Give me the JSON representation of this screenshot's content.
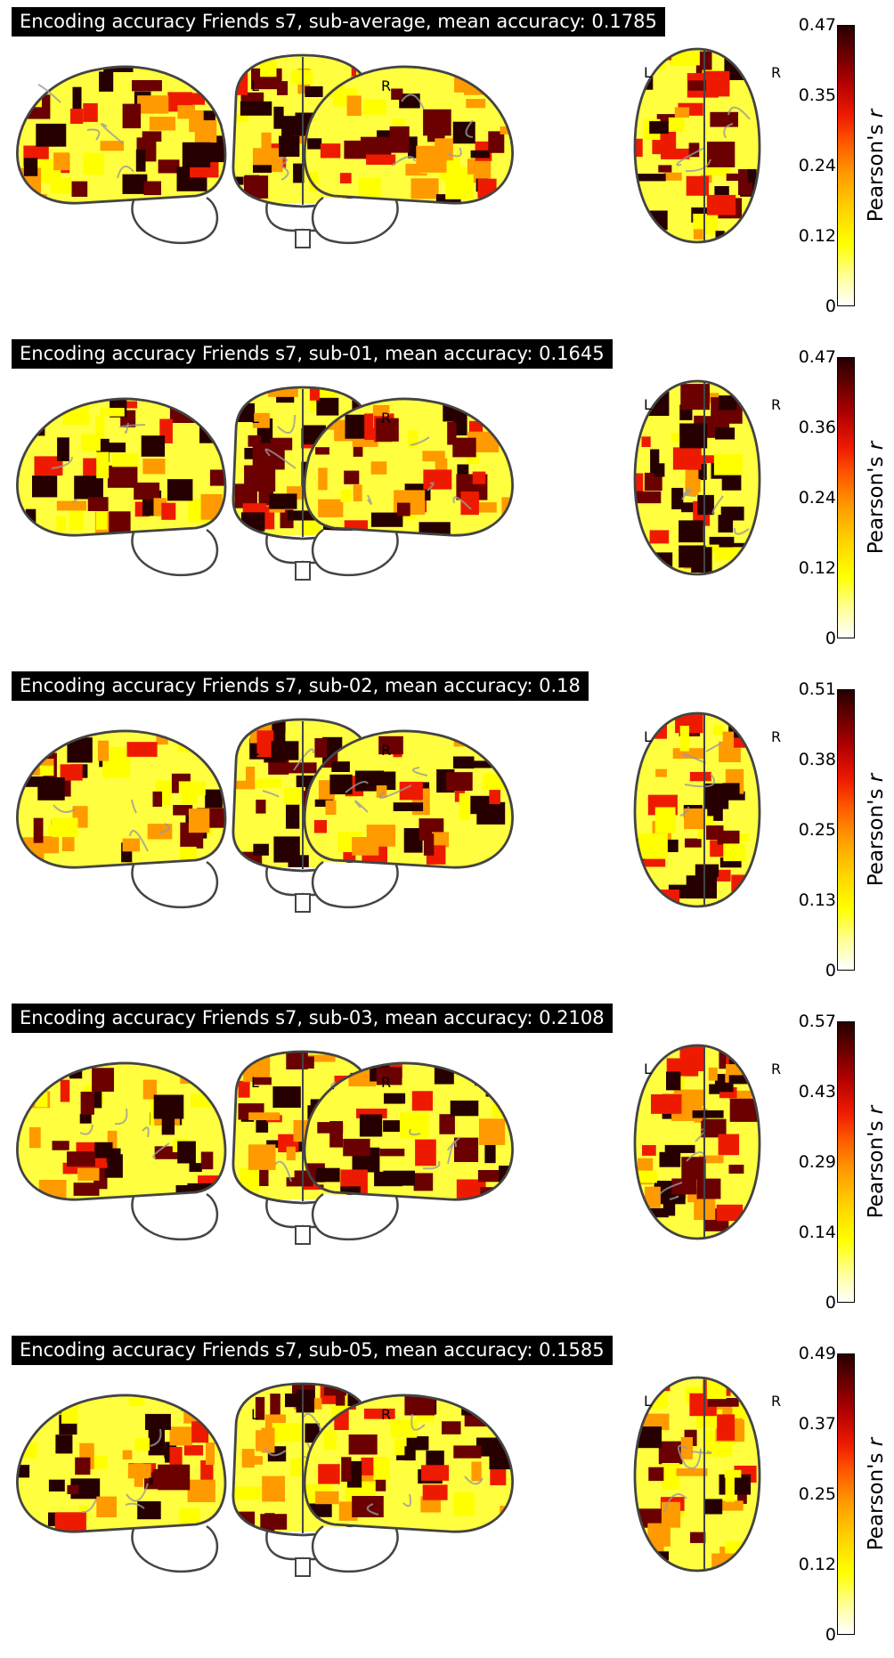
{
  "panels": [
    {
      "title": "Encoding accuracy Friends s7, sub-average, mean accuracy: 0.1785",
      "ticks": [
        "0.47",
        "0.35",
        "0.24",
        "0.12",
        "0"
      ]
    },
    {
      "title": "Encoding accuracy Friends s7, sub-01, mean accuracy: 0.1645",
      "ticks": [
        "0.47",
        "0.36",
        "0.24",
        "0.12",
        "0"
      ]
    },
    {
      "title": "Encoding accuracy Friends s7, sub-02, mean accuracy: 0.18",
      "ticks": [
        "0.51",
        "0.38",
        "0.25",
        "0.13",
        "0"
      ]
    },
    {
      "title": "Encoding accuracy Friends s7, sub-03, mean accuracy: 0.2108",
      "ticks": [
        "0.57",
        "0.43",
        "0.29",
        "0.14",
        "0"
      ]
    },
    {
      "title": "Encoding accuracy Friends s7, sub-05, mean accuracy: 0.1585",
      "ticks": [
        "0.49",
        "0.37",
        "0.25",
        "0.12",
        "0"
      ]
    }
  ],
  "colorbar_label": "Pearson's",
  "colorbar_label_var": "r",
  "hemisphere_left": "L",
  "hemisphere_right": "R",
  "colormap": [
    "#ffffff",
    "#ffff00",
    "#ff9a00",
    "#ee1a00",
    "#6a0000",
    "#260000"
  ]
}
